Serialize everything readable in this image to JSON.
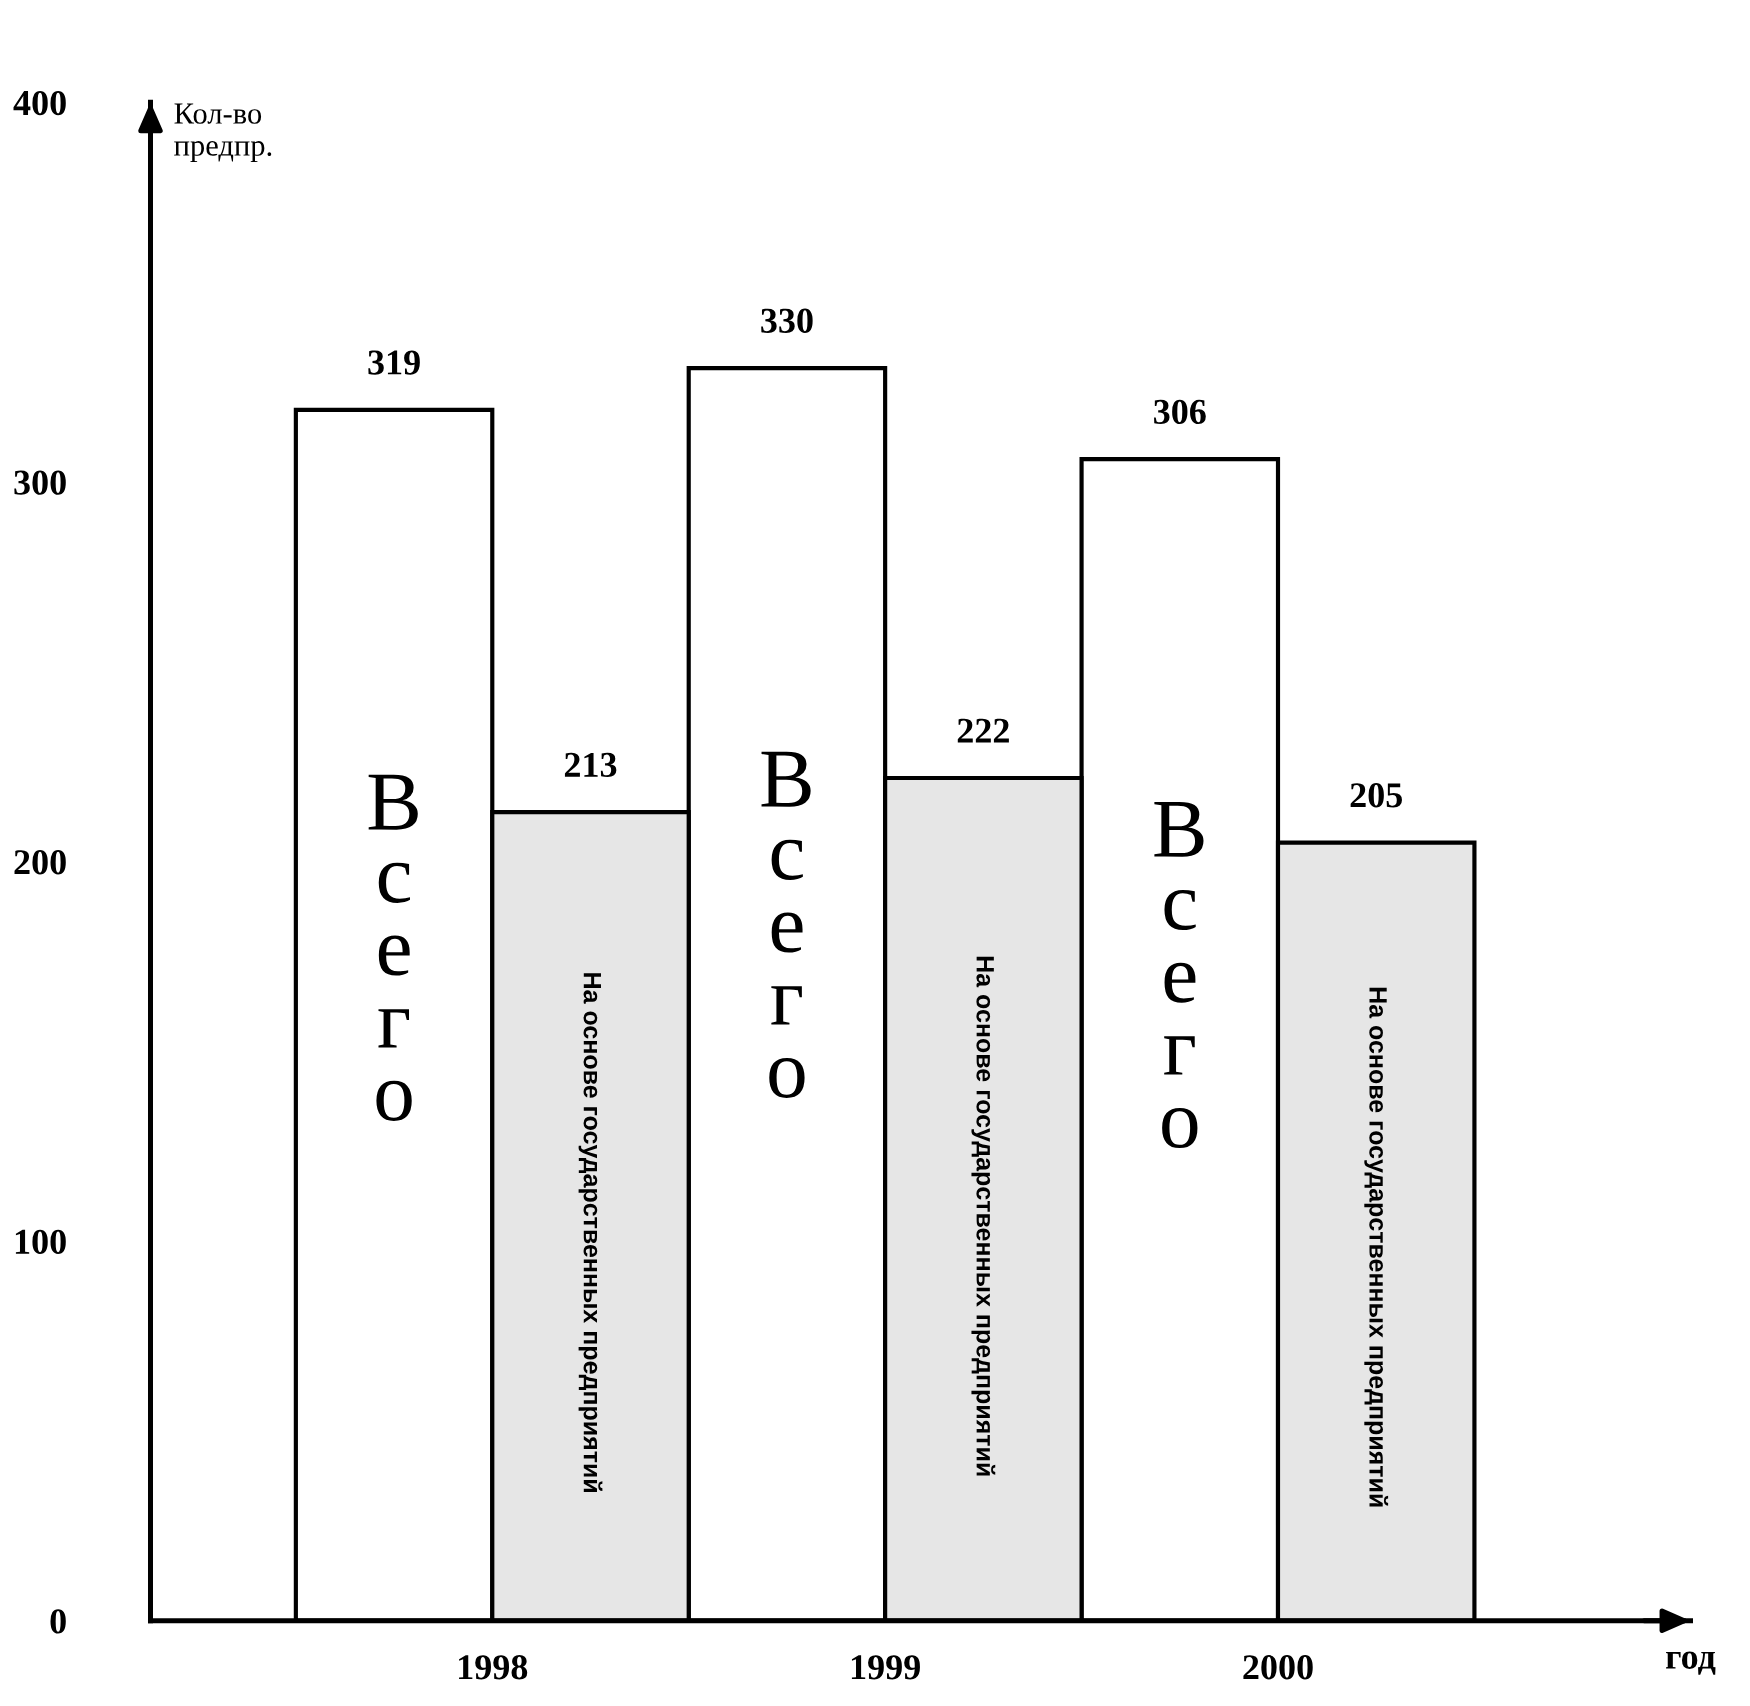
{
  "chart_data": {
    "type": "bar",
    "categories": [
      "1998",
      "1999",
      "2000"
    ],
    "series": [
      {
        "name": "Всего",
        "color": "#ffffff",
        "values": [
          319,
          330,
          306
        ]
      },
      {
        "name": "На основе государственных предприятий",
        "color": "#e6e6e6",
        "values": [
          213,
          222,
          205
        ]
      }
    ],
    "ylim": [
      0,
      400
    ],
    "yticks": [
      0,
      100,
      200,
      300,
      400
    ],
    "ylabel": "Кол-во\nпредпр.",
    "xlabel": "год",
    "data_labels": true,
    "grid": false,
    "legend": false
  }
}
